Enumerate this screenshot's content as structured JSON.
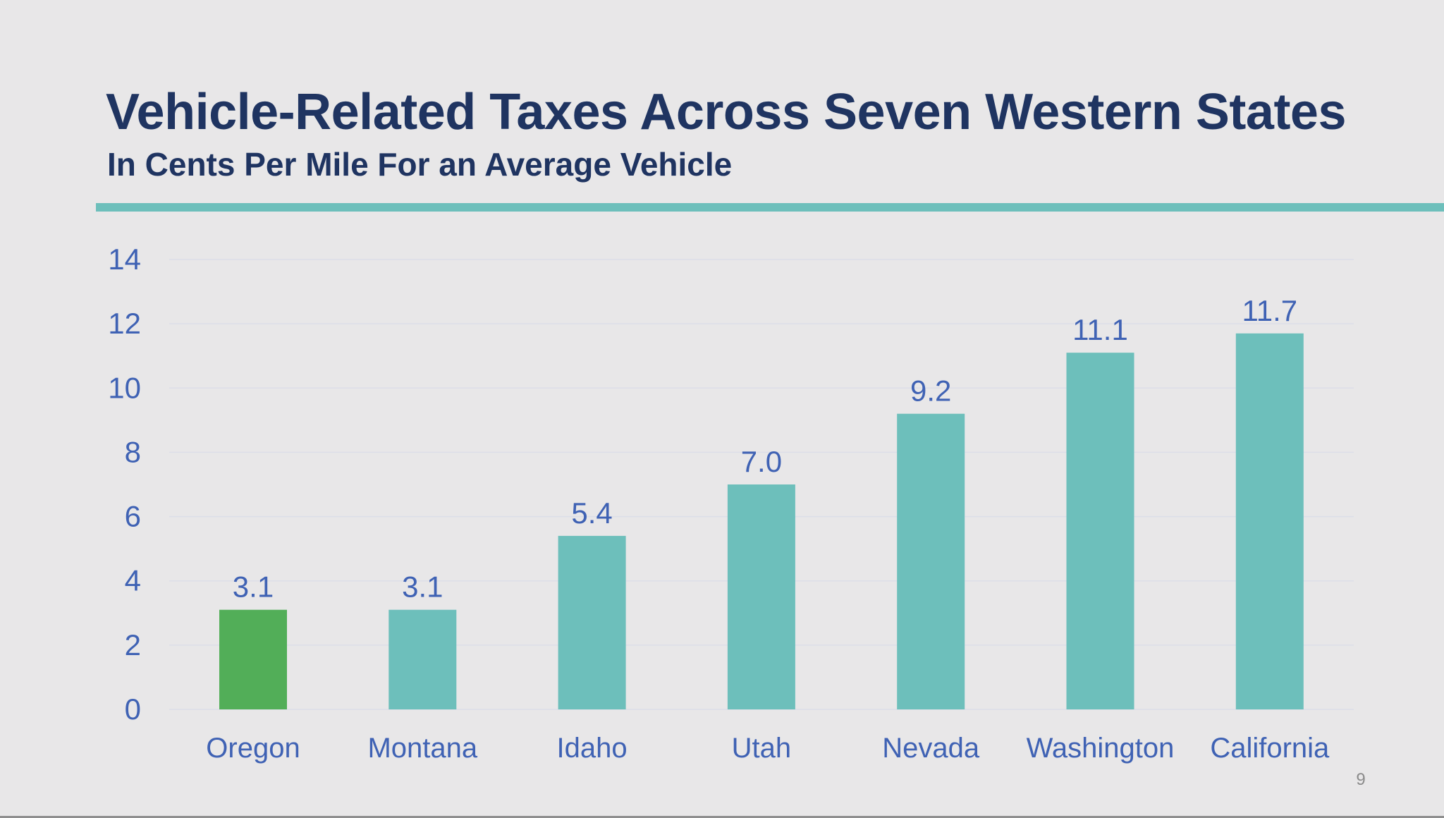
{
  "slide": {
    "title": "Vehicle-Related Taxes Across Seven Western States",
    "subtitle": "In Cents Per Mile For an Average Vehicle",
    "page_number": "9"
  },
  "colors": {
    "title": "#1f3461",
    "accent_rule": "#6dbfbb",
    "bar": "#6dbfbb",
    "highlight_bar": "#52ae58",
    "axis_text": "#3f62b4",
    "gridline": "#dcdee8"
  },
  "chart_data": {
    "type": "bar",
    "title": "Vehicle-Related Taxes Across Seven Western States",
    "subtitle": "In Cents Per Mile For an Average Vehicle",
    "xlabel": "",
    "ylabel": "",
    "categories": [
      "Oregon",
      "Montana",
      "Idaho",
      "Utah",
      "Nevada",
      "Washington",
      "California"
    ],
    "values": [
      3.1,
      3.1,
      5.4,
      7.0,
      9.2,
      11.1,
      11.7
    ],
    "value_labels": [
      "3.1",
      "3.1",
      "5.4",
      "7.0",
      "9.2",
      "11.1",
      "11.7"
    ],
    "highlighted_category": "Oregon",
    "ylim": [
      0,
      14
    ],
    "yticks": [
      0,
      2,
      4,
      6,
      8,
      10,
      12,
      14
    ],
    "grid": true,
    "legend": "none"
  }
}
